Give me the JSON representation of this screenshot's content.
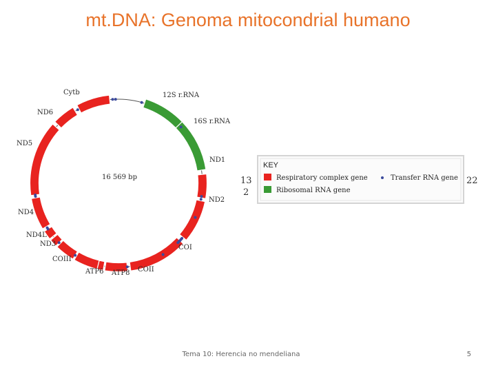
{
  "slide": {
    "title": "mt.DNA: Genoma mitocondrial humano",
    "footer": "Tema 10: Herencia no mendeliana",
    "page_number": "5"
  },
  "diagram": {
    "genome_size": "16 569 bp",
    "gene_labels": [
      "Cytb",
      "12S r.RNA",
      "ND6",
      "16S r.RNA",
      "ND5",
      "ND1",
      "ND2",
      "ND4",
      "ND4L",
      "ND3",
      "COI",
      "COIII",
      "ATP6",
      "ATP8",
      "COII"
    ],
    "side_numbers": {
      "left_top": "13",
      "left_bottom": "2",
      "right": "22"
    }
  },
  "key": {
    "title": "KEY",
    "respiratory": "Respiratory complex gene",
    "ribosomal": "Ribosomal RNA gene",
    "transfer": "Transfer RNA gene"
  },
  "colors": {
    "title": "#e8732a",
    "respiratory_gene": "#e8231f",
    "ribosomal_gene": "#3a9b35",
    "trna_dot": "#3b4a9c"
  }
}
